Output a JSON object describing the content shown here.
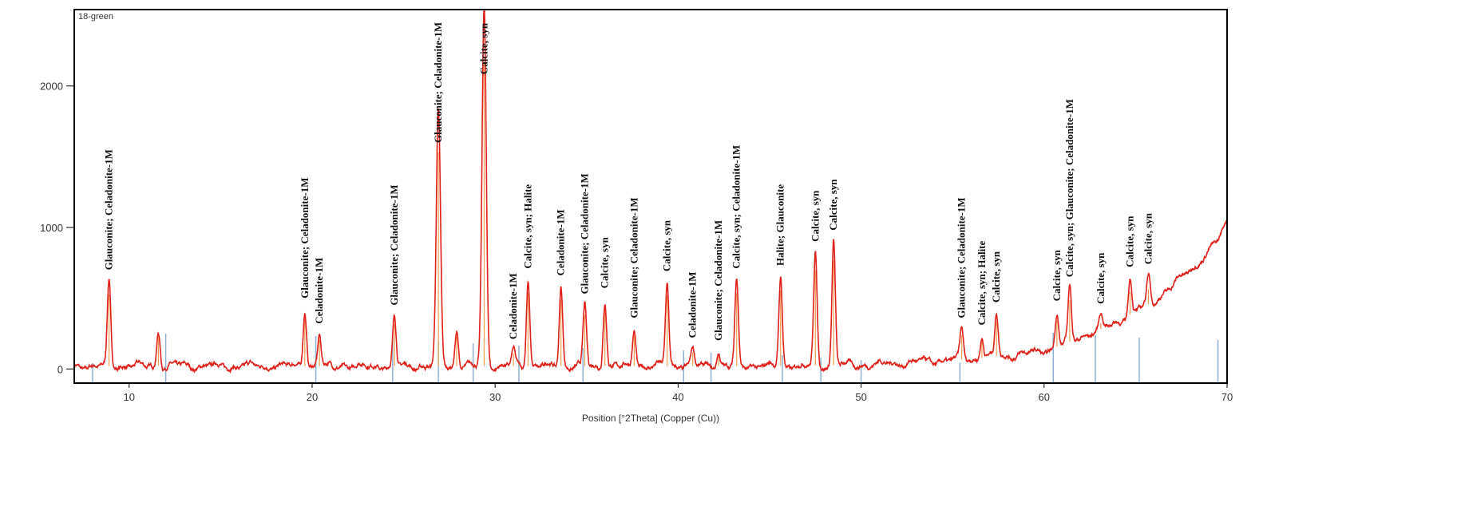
{
  "chart_data": {
    "type": "line",
    "title": "",
    "sample_name": "18-green",
    "xlabel": "Position [°2Theta] (Copper (Cu))",
    "ylabel": "",
    "xlim": [
      7,
      70
    ],
    "ylim": [
      -100,
      2540
    ],
    "x_ticks": [
      10,
      20,
      30,
      40,
      50,
      60,
      70
    ],
    "y_ticks": [
      0,
      1000,
      2000
    ],
    "grid": false,
    "colors": {
      "pattern": "#e0201a",
      "phase_sticks": "#f0a050",
      "reference_sticks": "#8fb0d0",
      "frame": "#000000"
    },
    "peaks": [
      {
        "x": 8.9,
        "y": 620
      },
      {
        "x": 11.6,
        "y": 270
      },
      {
        "x": 19.6,
        "y": 420
      },
      {
        "x": 20.4,
        "y": 240
      },
      {
        "x": 24.5,
        "y": 370
      },
      {
        "x": 26.9,
        "y": 1800
      },
      {
        "x": 27.9,
        "y": 270
      },
      {
        "x": 29.4,
        "y": 2550
      },
      {
        "x": 31.0,
        "y": 130
      },
      {
        "x": 31.8,
        "y": 630
      },
      {
        "x": 33.6,
        "y": 580
      },
      {
        "x": 34.9,
        "y": 450
      },
      {
        "x": 36.0,
        "y": 490
      },
      {
        "x": 37.6,
        "y": 280
      },
      {
        "x": 39.4,
        "y": 610
      },
      {
        "x": 40.8,
        "y": 140
      },
      {
        "x": 42.2,
        "y": 120
      },
      {
        "x": 43.2,
        "y": 630
      },
      {
        "x": 45.6,
        "y": 650
      },
      {
        "x": 47.5,
        "y": 820
      },
      {
        "x": 48.5,
        "y": 900
      },
      {
        "x": 55.5,
        "y": 280
      },
      {
        "x": 56.6,
        "y": 230
      },
      {
        "x": 57.4,
        "y": 390
      },
      {
        "x": 60.7,
        "y": 400
      },
      {
        "x": 61.4,
        "y": 570
      },
      {
        "x": 63.1,
        "y": 380
      },
      {
        "x": 64.7,
        "y": 640
      },
      {
        "x": 65.7,
        "y": 660
      }
    ],
    "background": [
      {
        "x": 7,
        "y": 20
      },
      {
        "x": 20,
        "y": 20
      },
      {
        "x": 45,
        "y": 20
      },
      {
        "x": 50,
        "y": 30
      },
      {
        "x": 55,
        "y": 60
      },
      {
        "x": 60,
        "y": 120
      },
      {
        "x": 64,
        "y": 330
      },
      {
        "x": 66,
        "y": 480
      },
      {
        "x": 68,
        "y": 700
      },
      {
        "x": 69.5,
        "y": 900
      },
      {
        "x": 70,
        "y": 1060
      }
    ],
    "reference_sticks": [
      8.0,
      12.0,
      20.2,
      24.4,
      26.9,
      28.8,
      31.3,
      34.8,
      40.3,
      41.8,
      45.7,
      47.8,
      50.0,
      55.4,
      60.5,
      62.8,
      65.2,
      69.5
    ],
    "annotations": [
      {
        "x": 8.9,
        "text": "Glauconite; Celadonite-1M"
      },
      {
        "x": 19.6,
        "text": "Glauconite; Celadonite-1M"
      },
      {
        "x": 20.4,
        "text": "Celadonite-1M"
      },
      {
        "x": 24.5,
        "text": "Glauconite; Celadonite-1M"
      },
      {
        "x": 26.9,
        "text": "Glauconite; Celadonite-1M"
      },
      {
        "x": 29.4,
        "text": "Calcite, syn"
      },
      {
        "x": 31.0,
        "text": "Celadonite-1M"
      },
      {
        "x": 31.8,
        "text": "Calcite, syn; Halite"
      },
      {
        "x": 33.6,
        "text": "Celadonite-1M"
      },
      {
        "x": 34.9,
        "text": "Glauconite; Celadonite-1M"
      },
      {
        "x": 36.0,
        "text": "Calcite, syn"
      },
      {
        "x": 37.6,
        "text": "Glauconite; Celadonite-1M"
      },
      {
        "x": 39.4,
        "text": "Calcite, syn"
      },
      {
        "x": 40.8,
        "text": "Celadonite-1M"
      },
      {
        "x": 42.2,
        "text": "Glauconite; Celadonite-1M"
      },
      {
        "x": 43.2,
        "text": "Calcite, syn; Celadonite-1M"
      },
      {
        "x": 45.6,
        "text": "Halite; Glauconite"
      },
      {
        "x": 47.5,
        "text": "Calcite, syn"
      },
      {
        "x": 48.5,
        "text": "Calcite, syn"
      },
      {
        "x": 55.5,
        "text": "Glauconite; Celadonite-1M"
      },
      {
        "x": 56.6,
        "text": "Calcite, syn; Halite"
      },
      {
        "x": 57.4,
        "text": "Calcite, syn"
      },
      {
        "x": 60.7,
        "text": "Calcite, syn"
      },
      {
        "x": 61.4,
        "text": "Calcite, syn; Glauconite; Celadonite-1M"
      },
      {
        "x": 63.1,
        "text": "Calcite, syn"
      },
      {
        "x": 64.7,
        "text": "Calcite, syn"
      },
      {
        "x": 65.7,
        "text": "Calcite, syn"
      }
    ]
  }
}
